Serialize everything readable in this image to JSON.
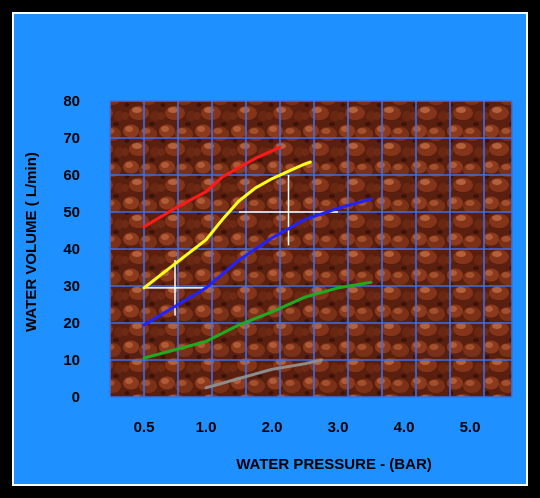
{
  "chart_data": {
    "type": "line",
    "title": "",
    "xlabel": "WATER PRESSURE - (BAR)",
    "ylabel": "WATER VOLUME  ( L/min)",
    "x_ticks": [
      "0.5",
      "1.0",
      "2.0",
      "3.0",
      "4.0",
      "5.0"
    ],
    "y_ticks": [
      "0",
      "10",
      "20",
      "30",
      "40",
      "50",
      "60",
      "70",
      "80"
    ],
    "ylim": [
      0,
      80
    ],
    "grid": true,
    "series": [
      {
        "color": "#ff1a1a",
        "points": [
          [
            0.5,
            46
          ],
          [
            0.75,
            51
          ],
          [
            1.0,
            55.5
          ],
          [
            1.25,
            59.5
          ],
          [
            1.5,
            62
          ],
          [
            1.75,
            64.5
          ],
          [
            2.0,
            66.5
          ],
          [
            2.12,
            67.5
          ]
        ]
      },
      {
        "color": "#ffff1a",
        "points": [
          [
            0.5,
            29.5
          ],
          [
            0.75,
            36
          ],
          [
            1.0,
            42.5
          ],
          [
            1.25,
            48
          ],
          [
            1.5,
            53
          ],
          [
            1.75,
            56.5
          ],
          [
            2.0,
            59
          ],
          [
            2.25,
            61
          ],
          [
            2.5,
            63
          ],
          [
            2.58,
            63.5
          ]
        ]
      },
      {
        "color": "#2222ff",
        "points": [
          [
            0.5,
            19.5
          ],
          [
            0.75,
            24.5
          ],
          [
            1.0,
            29.5
          ],
          [
            1.5,
            37
          ],
          [
            2.0,
            43
          ],
          [
            2.5,
            48
          ],
          [
            3.0,
            51
          ],
          [
            3.5,
            53.5
          ]
        ]
      },
      {
        "color": "#1faa1f",
        "points": [
          [
            0.5,
            10.5
          ],
          [
            1.0,
            15
          ],
          [
            1.5,
            19.5
          ],
          [
            2.0,
            23
          ],
          [
            2.5,
            27
          ],
          [
            3.0,
            29.5
          ],
          [
            3.5,
            31
          ]
        ]
      },
      {
        "color": "#8c8c8c",
        "points": [
          [
            1.0,
            2.5
          ],
          [
            1.5,
            5
          ],
          [
            2.0,
            7.5
          ],
          [
            2.5,
            9
          ],
          [
            2.75,
            10
          ]
        ]
      }
    ],
    "reference_lines": {
      "color": "#ffffff",
      "segments": [
        [
          [
            0.5,
            29.5
          ],
          [
            1.0,
            29.5
          ]
        ],
        [
          [
            0.75,
            22
          ],
          [
            0.75,
            37
          ]
        ],
        [
          [
            1.5,
            50
          ],
          [
            3.0,
            50
          ]
        ],
        [
          [
            2.25,
            41
          ],
          [
            2.25,
            60
          ]
        ]
      ]
    }
  }
}
